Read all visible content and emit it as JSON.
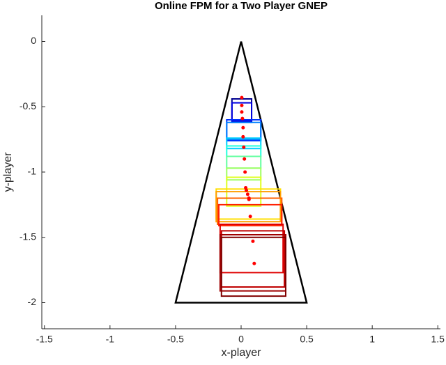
{
  "chart_data": {
    "type": "scatter",
    "title": "Online FPM for a Two Player GNEP",
    "xlabel": "x-player",
    "ylabel": "y-player",
    "xlim": [
      -1.52,
      1.52
    ],
    "ylim": [
      -2.2,
      0.2
    ],
    "xticks": [
      -1.5,
      -1,
      -0.5,
      0,
      0.5,
      1,
      1.5
    ],
    "yticks": [
      -2,
      -1.5,
      -1,
      -0.5,
      0
    ],
    "outline": {
      "color": "#000000",
      "x": [
        0,
        -0.5,
        0.5,
        0
      ],
      "y": [
        0,
        -2,
        -2,
        0
      ]
    },
    "boxes": [
      {
        "color": "#00008f",
        "x": [
          -0.07,
          0.08
        ],
        "y": [
          -0.62,
          -0.44
        ]
      },
      {
        "color": "#0000df",
        "x": [
          -0.07,
          0.08
        ],
        "y": [
          -0.61,
          -0.47
        ]
      },
      {
        "color": "#0030ff",
        "x": [
          -0.11,
          0.15
        ],
        "y": [
          -0.76,
          -0.6
        ]
      },
      {
        "color": "#0080ff",
        "x": [
          -0.11,
          0.15
        ],
        "y": [
          -0.75,
          -0.62
        ]
      },
      {
        "color": "#00cfff",
        "x": [
          -0.11,
          0.15
        ],
        "y": [
          -0.82,
          -0.74
        ]
      },
      {
        "color": "#20ffdf",
        "x": [
          -0.11,
          0.15
        ],
        "y": [
          -0.88,
          -0.8
        ]
      },
      {
        "color": "#60ff9f",
        "x": [
          -0.11,
          0.15
        ],
        "y": [
          -0.97,
          -0.88
        ]
      },
      {
        "color": "#9fff60",
        "x": [
          -0.11,
          0.15
        ],
        "y": [
          -1.06,
          -0.97
        ]
      },
      {
        "color": "#dfff20",
        "x": [
          -0.11,
          0.15
        ],
        "y": [
          -1.26,
          -1.04
        ]
      },
      {
        "color": "#ffdf00",
        "x": [
          -0.19,
          0.3
        ],
        "y": [
          -1.36,
          -1.13
        ]
      },
      {
        "color": "#ff9f00",
        "x": [
          -0.19,
          0.3
        ],
        "y": [
          -1.38,
          -1.15
        ]
      },
      {
        "color": "#ff6000",
        "x": [
          -0.18,
          0.31
        ],
        "y": [
          -1.4,
          -1.2
        ]
      },
      {
        "color": "#ff2000",
        "x": [
          -0.17,
          0.31
        ],
        "y": [
          -1.41,
          -1.25
        ]
      },
      {
        "color": "#df0000",
        "x": [
          -0.16,
          0.32
        ],
        "y": [
          -1.77,
          -1.4
        ]
      },
      {
        "color": "#bf0000",
        "x": [
          -0.15,
          0.33
        ],
        "y": [
          -1.88,
          -1.45
        ]
      },
      {
        "color": "#9f0000",
        "x": [
          -0.16,
          0.34
        ],
        "y": [
          -1.91,
          -1.48
        ]
      },
      {
        "color": "#800000",
        "x": [
          -0.15,
          0.34
        ],
        "y": [
          -1.95,
          -1.5
        ]
      }
    ],
    "points": {
      "color": "#ff0000",
      "x": [
        0.005,
        0.005,
        0.005,
        0.01,
        0.015,
        0.015,
        0.02,
        0.025,
        0.03,
        0.035,
        0.04,
        0.05,
        0.06,
        0.06,
        0.07,
        0.09,
        0.1
      ],
      "y": [
        -0.43,
        -0.49,
        -0.54,
        -0.59,
        -0.66,
        -0.73,
        -0.81,
        -0.9,
        -1.0,
        -1.12,
        -1.14,
        -1.17,
        -1.2,
        -1.21,
        -1.34,
        -1.53,
        -1.7
      ]
    }
  }
}
